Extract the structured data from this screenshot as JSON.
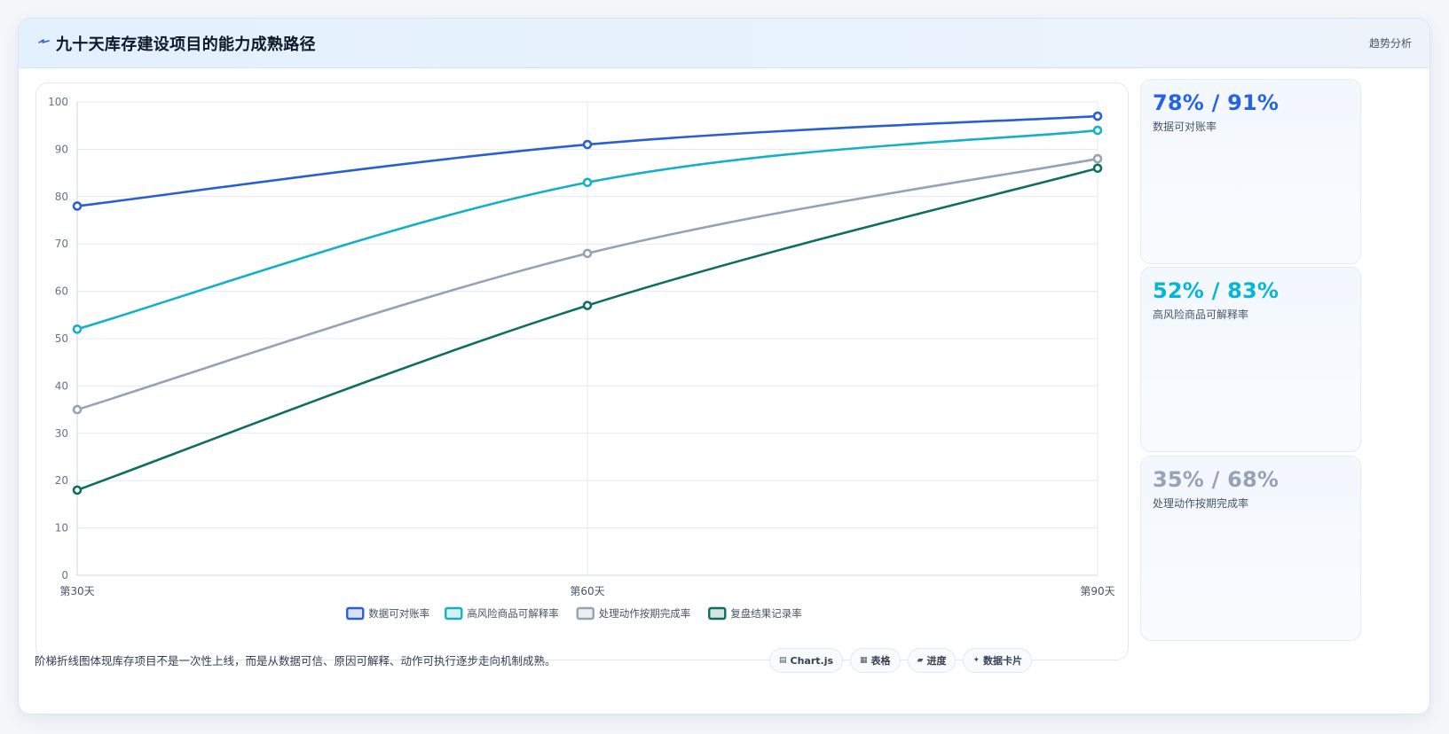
{
  "header": {
    "icon": "lightning-icon",
    "title": "九十天库存建设项目的能力成熟路径",
    "right_label": "趋势分析"
  },
  "chart_data": {
    "type": "line",
    "categories": [
      "第30天",
      "第60天",
      "第90天"
    ],
    "ylim": [
      0,
      100
    ],
    "yticks": [
      0,
      10,
      20,
      30,
      40,
      50,
      60,
      70,
      80,
      90,
      100
    ],
    "grid": true,
    "legend_position": "bottom",
    "series": [
      {
        "name": "数据可对账率",
        "values": [
          78,
          91,
          97
        ],
        "color": "#2a5fd3"
      },
      {
        "name": "高风险商品可解释率",
        "values": [
          52,
          83,
          94
        ],
        "color": "#14b0c7"
      },
      {
        "name": "处理动作按期完成率",
        "values": [
          35,
          68,
          88
        ],
        "color": "#94a3b8"
      },
      {
        "name": "复盘结果记录率",
        "values": [
          18,
          57,
          86
        ],
        "color": "#0f6e62"
      }
    ]
  },
  "side_cards": [
    {
      "value": "78% / 91%",
      "label": "数据可对账率",
      "color": "#2563eb"
    },
    {
      "value": "52% / 83%",
      "label": "高风险商品可解释率",
      "color": "#06b6d4"
    },
    {
      "value": "35% / 68%",
      "label": "处理动作按期完成率",
      "color": "#94a3b8"
    }
  ],
  "footer": {
    "text": "阶梯折线图体现库存项目不是一次性上线，而是从数据可信、原因可解释、动作可执行逐步走向机制成熟。",
    "chips": [
      {
        "icon": "chart-icon",
        "glyph": "▤",
        "label": "Chart.js"
      },
      {
        "icon": "table-icon",
        "glyph": "▦",
        "label": "表格"
      },
      {
        "icon": "progress-icon",
        "glyph": "▰",
        "label": "进度"
      },
      {
        "icon": "sparkle-icon",
        "glyph": "✦",
        "label": "数据卡片"
      }
    ]
  }
}
